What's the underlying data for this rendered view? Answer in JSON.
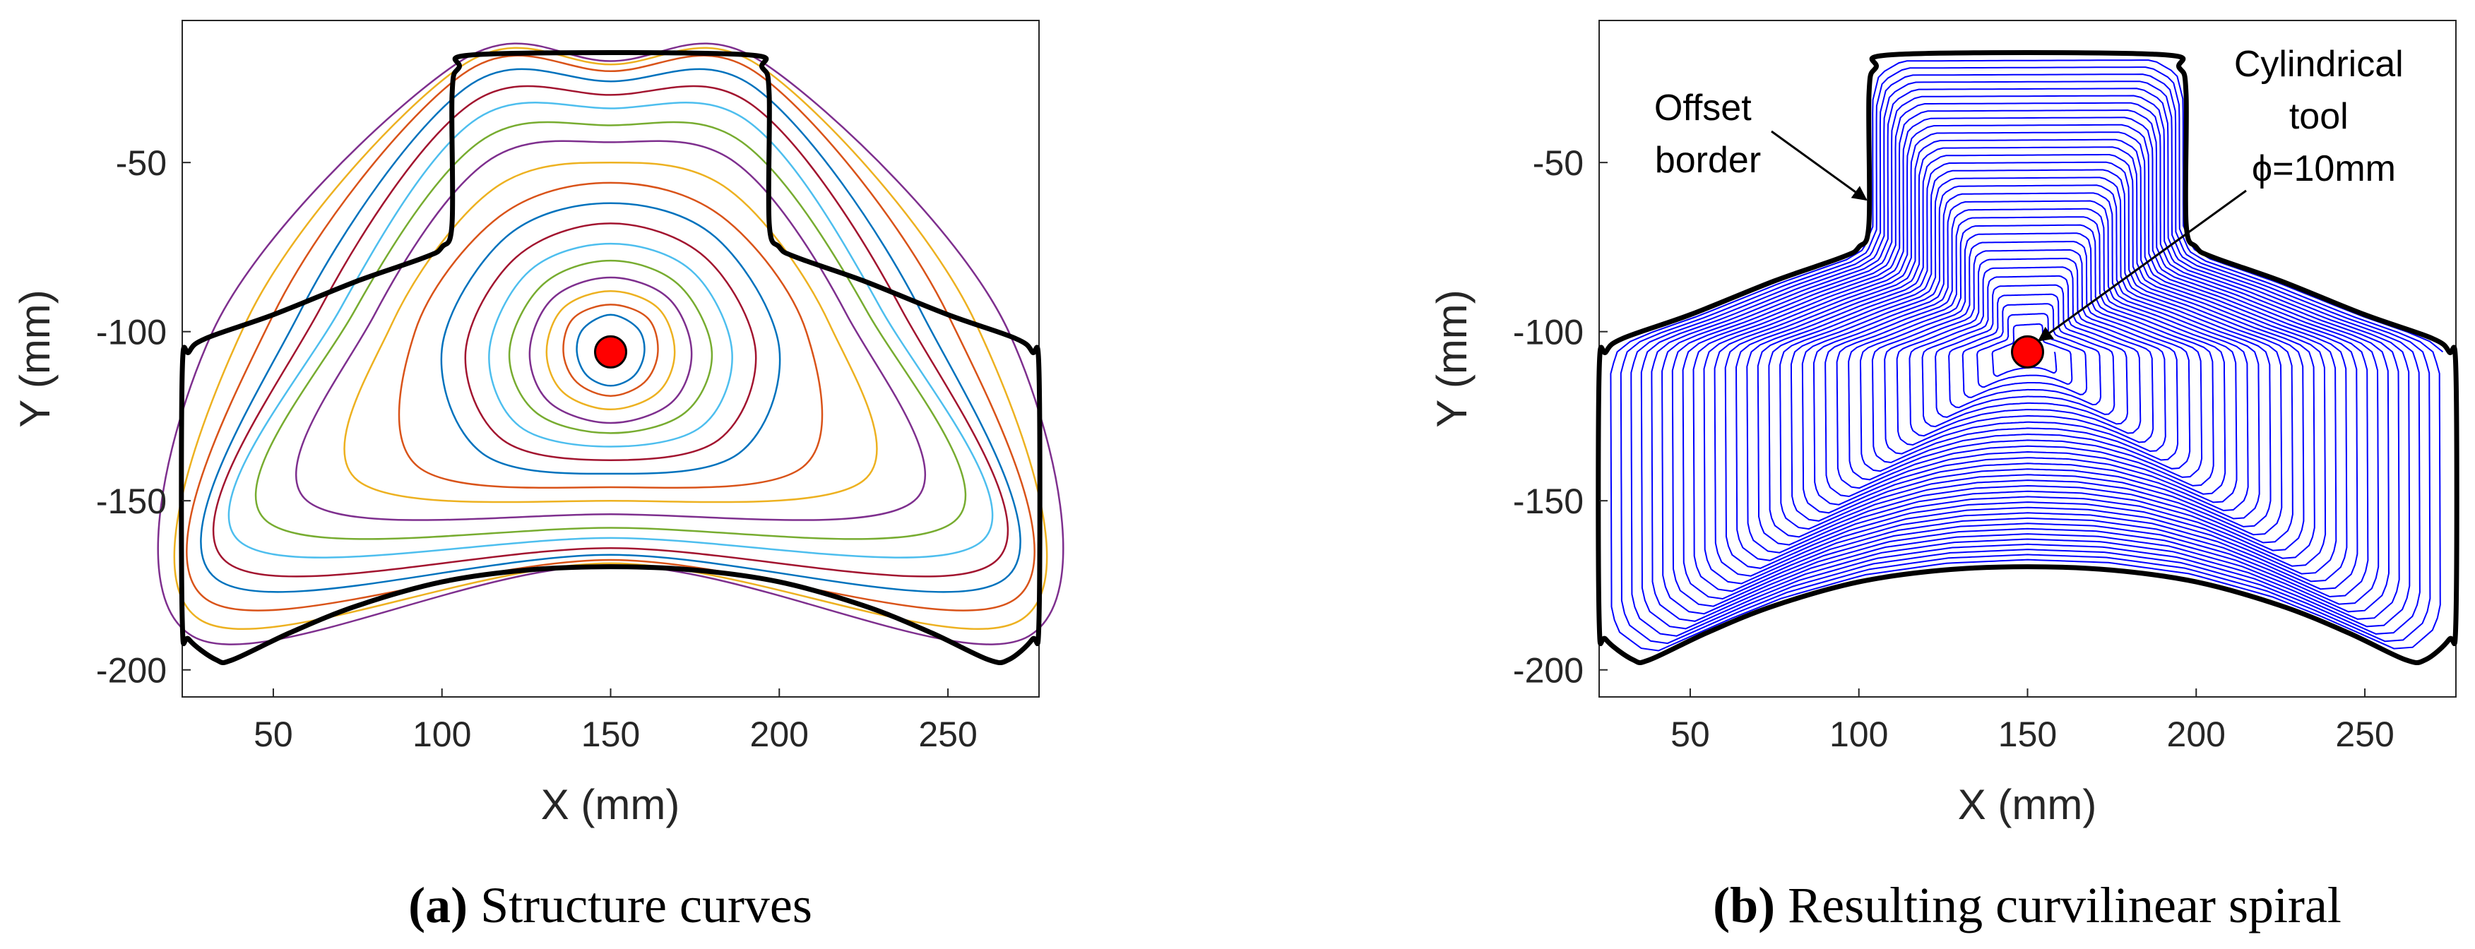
{
  "chart_data": [
    {
      "type": "line",
      "panel_label": "(a)",
      "caption": "Structure curves",
      "xlabel": "X (mm)",
      "ylabel": "Y (mm)",
      "xlim": [
        23,
        277
      ],
      "ylim": [
        -208,
        -8
      ],
      "xticks": [
        50,
        100,
        150,
        200,
        250
      ],
      "yticks": [
        -50,
        -100,
        -150,
        -200
      ],
      "grid": false,
      "center_point": {
        "x": 150,
        "y": -106
      },
      "series": [
        {
          "role": "border",
          "color": "#000000",
          "points": [
            [
              33,
              -197
            ],
            [
              38,
              -197
            ],
            [
              55,
              -189
            ],
            [
              75,
              -181
            ],
            [
              100,
              -174
            ],
            [
              125,
              -170.5
            ],
            [
              150,
              -169.5
            ],
            [
              175,
              -170.5
            ],
            [
              200,
              -174
            ],
            [
              225,
              -181
            ],
            [
              245,
              -189
            ],
            [
              262,
              -197
            ],
            [
              268,
              -197
            ],
            [
              275,
              -191
            ],
            [
              277,
              -185
            ],
            [
              277,
              -112
            ],
            [
              275,
              -106
            ],
            [
              270,
              -102
            ],
            [
              250,
              -95
            ],
            [
              225,
              -85
            ],
            [
              205,
              -78
            ],
            [
              200,
              -75
            ],
            [
              197,
              -68
            ],
            [
              197,
              -30
            ],
            [
              195,
              -22
            ],
            [
              188,
              -18
            ],
            [
              112,
              -18
            ],
            [
              105,
              -22
            ],
            [
              103,
              -30
            ],
            [
              103,
              -68
            ],
            [
              100,
              -75
            ],
            [
              95,
              -78
            ],
            [
              75,
              -85
            ],
            [
              50,
              -95
            ],
            [
              30,
              -102
            ],
            [
              25,
              -106
            ],
            [
              23,
              -112
            ],
            [
              23,
              -185
            ],
            [
              25,
              -191
            ],
            [
              33,
              -197
            ]
          ]
        },
        {
          "role": "curve",
          "color": "#0072BD",
          "points": [
            [
              150,
              -95
            ],
            [
              158,
              -99
            ],
            [
              160,
              -106
            ],
            [
              157,
              -113
            ],
            [
              150,
              -116
            ],
            [
              143,
              -113
            ],
            [
              140,
              -106
            ],
            [
              142,
              -99
            ],
            [
              150,
              -95
            ]
          ]
        },
        {
          "role": "curve",
          "color": "#D95319",
          "points": [
            [
              150,
              -92
            ],
            [
              161,
              -96
            ],
            [
              164,
              -106
            ],
            [
              160,
              -115
            ],
            [
              150,
              -119
            ],
            [
              140,
              -115
            ],
            [
              136,
              -106
            ],
            [
              139,
              -96
            ],
            [
              150,
              -92
            ]
          ]
        },
        {
          "role": "curve",
          "color": "#EDB120",
          "points": [
            [
              150,
              -88
            ],
            [
              164,
              -93
            ],
            [
              169,
              -106
            ],
            [
              164,
              -118
            ],
            [
              150,
              -123
            ],
            [
              136,
              -118
            ],
            [
              131,
              -106
            ],
            [
              136,
              -93
            ],
            [
              150,
              -88
            ]
          ]
        },
        {
          "role": "curve",
          "color": "#7E2F8E",
          "points": [
            [
              150,
              -84
            ],
            [
              167,
              -90
            ],
            [
              174,
              -106
            ],
            [
              168,
              -121
            ],
            [
              150,
              -127
            ],
            [
              132,
              -121
            ],
            [
              126,
              -106
            ],
            [
              133,
              -90
            ],
            [
              150,
              -84
            ]
          ]
        },
        {
          "role": "curve",
          "color": "#77AC30",
          "points": [
            [
              150,
              -79
            ],
            [
              170,
              -86
            ],
            [
              180,
              -106
            ],
            [
              172,
              -124
            ],
            [
              150,
              -130
            ],
            [
              128,
              -124
            ],
            [
              120,
              -106
            ],
            [
              130,
              -86
            ],
            [
              150,
              -79
            ]
          ]
        },
        {
          "role": "curve",
          "color": "#4DBEEE",
          "points": [
            [
              150,
              -74
            ],
            [
              174,
              -82
            ],
            [
              186,
              -106
            ],
            [
              177,
              -128
            ],
            [
              150,
              -134
            ],
            [
              123,
              -128
            ],
            [
              114,
              -106
            ],
            [
              126,
              -82
            ],
            [
              150,
              -74
            ]
          ]
        },
        {
          "role": "curve",
          "color": "#A2142F",
          "points": [
            [
              150,
              -68
            ],
            [
              178,
              -78
            ],
            [
              193,
              -106
            ],
            [
              182,
              -132
            ],
            [
              150,
              -138
            ],
            [
              118,
              -132
            ],
            [
              107,
              -106
            ],
            [
              122,
              -78
            ],
            [
              150,
              -68
            ]
          ]
        },
        {
          "role": "curve",
          "color": "#0072BD",
          "points": [
            [
              150,
              -62
            ],
            [
              181,
              -72
            ],
            [
              200,
              -105
            ],
            [
              188,
              -136
            ],
            [
              150,
              -142
            ],
            [
              112,
              -136
            ],
            [
              100,
              -105
            ],
            [
              119,
              -72
            ],
            [
              150,
              -62
            ]
          ]
        },
        {
          "role": "curve",
          "color": "#D95319",
          "points": [
            [
              150,
              -56
            ],
            [
              183,
              -66
            ],
            [
              208,
              -100
            ],
            [
              207,
              -140
            ],
            [
              150,
              -146
            ],
            [
              93,
              -140
            ],
            [
              92,
              -100
            ],
            [
              117,
              -66
            ],
            [
              150,
              -56
            ]
          ]
        },
        {
          "role": "curve",
          "color": "#EDB120",
          "points": [
            [
              150,
              -50
            ],
            [
              185,
              -58
            ],
            [
              215,
              -98
            ],
            [
              225,
              -144
            ],
            [
              150,
              -150
            ],
            [
              75,
              -144
            ],
            [
              85,
              -98
            ],
            [
              115,
              -58
            ],
            [
              150,
              -50
            ]
          ]
        },
        {
          "role": "curve",
          "color": "#7E2F8E",
          "points": [
            [
              150,
              -44
            ],
            [
              187,
              -50
            ],
            [
              220,
              -95
            ],
            [
              240,
              -150
            ],
            [
              150,
              -154
            ],
            [
              60,
              -150
            ],
            [
              80,
              -95
            ],
            [
              113,
              -50
            ],
            [
              150,
              -44
            ]
          ]
        },
        {
          "role": "curve",
          "color": "#77AC30",
          "points": [
            [
              150,
              -39
            ],
            [
              189,
              -44
            ],
            [
              226,
              -94
            ],
            [
              252,
              -156
            ],
            [
              150,
              -158
            ],
            [
              48,
              -156
            ],
            [
              74,
              -94
            ],
            [
              111,
              -44
            ],
            [
              150,
              -39
            ]
          ]
        },
        {
          "role": "curve",
          "color": "#4DBEEE",
          "points": [
            [
              150,
              -34
            ],
            [
              191,
              -38
            ],
            [
              230,
              -93
            ],
            [
              260,
              -162
            ],
            [
              150,
              -161
            ],
            [
              40,
              -162
            ],
            [
              70,
              -93
            ],
            [
              109,
              -38
            ],
            [
              150,
              -34
            ]
          ]
        },
        {
          "role": "curve",
          "color": "#A2142F",
          "points": [
            [
              150,
              -30
            ],
            [
              192,
              -33
            ],
            [
              236,
              -93
            ],
            [
              264,
              -168
            ],
            [
              150,
              -164
            ],
            [
              36,
              -168
            ],
            [
              64,
              -93
            ],
            [
              108,
              -33
            ],
            [
              150,
              -30
            ]
          ]
        },
        {
          "role": "curve",
          "color": "#0072BD",
          "points": [
            [
              150,
              -26
            ],
            [
              193,
              -28
            ],
            [
              242,
              -94
            ],
            [
              267,
              -173
            ],
            [
              150,
              -166
            ],
            [
              33,
              -173
            ],
            [
              58,
              -94
            ],
            [
              107,
              -28
            ],
            [
              150,
              -26
            ]
          ]
        },
        {
          "role": "curve",
          "color": "#D95319",
          "points": [
            [
              150,
              -23
            ],
            [
              194,
              -24
            ],
            [
              250,
              -95
            ],
            [
              270,
              -179
            ],
            [
              150,
              -167.5
            ],
            [
              30,
              -179
            ],
            [
              50,
              -95
            ],
            [
              106,
              -24
            ],
            [
              150,
              -23
            ]
          ]
        },
        {
          "role": "curve",
          "color": "#EDB120",
          "points": [
            [
              150,
              -21
            ],
            [
              195,
              -22
            ],
            [
              258,
              -97
            ],
            [
              272,
              -185
            ],
            [
              150,
              -168.5
            ],
            [
              28,
              -185
            ],
            [
              42,
              -97
            ],
            [
              105,
              -22
            ],
            [
              150,
              -21
            ]
          ]
        },
        {
          "role": "curve",
          "color": "#7E2F8E",
          "points": [
            [
              150,
              -20
            ],
            [
              196,
              -21
            ],
            [
              268,
              -100
            ],
            [
              274,
              -190
            ],
            [
              150,
              -169
            ],
            [
              26,
              -190
            ],
            [
              32,
              -100
            ],
            [
              104,
              -21
            ],
            [
              150,
              -20
            ]
          ]
        }
      ]
    },
    {
      "type": "line",
      "panel_label": "(b)",
      "caption": "Resulting curvilinear spiral",
      "xlabel": "X (mm)",
      "ylabel": "Y (mm)",
      "xlim": [
        23,
        277
      ],
      "ylim": [
        -208,
        -8
      ],
      "xticks": [
        50,
        100,
        150,
        200,
        250
      ],
      "yticks": [
        -50,
        -100,
        -150,
        -200
      ],
      "grid": false,
      "center_point": {
        "x": 150,
        "y": -106
      },
      "annotations": [
        {
          "lines": [
            "Offset",
            "border"
          ],
          "target": {
            "x": 103,
            "y": -61
          }
        },
        {
          "lines": [
            "Cylindrical",
            "tool",
            "ϕ=10mm"
          ],
          "target": {
            "x": 150,
            "y": -106
          }
        }
      ],
      "spiral": {
        "color": "#0000FF",
        "turns": 34,
        "start_fraction": 0.04
      },
      "series": [
        {
          "role": "border",
          "color": "#000000",
          "points": [
            [
              33,
              -197
            ],
            [
              38,
              -197
            ],
            [
              55,
              -189
            ],
            [
              75,
              -181
            ],
            [
              100,
              -174
            ],
            [
              125,
              -170.5
            ],
            [
              150,
              -169.5
            ],
            [
              175,
              -170.5
            ],
            [
              200,
              -174
            ],
            [
              225,
              -181
            ],
            [
              245,
              -189
            ],
            [
              262,
              -197
            ],
            [
              268,
              -197
            ],
            [
              275,
              -191
            ],
            [
              277,
              -185
            ],
            [
              277,
              -112
            ],
            [
              275,
              -106
            ],
            [
              270,
              -102
            ],
            [
              250,
              -95
            ],
            [
              225,
              -85
            ],
            [
              205,
              -78
            ],
            [
              200,
              -75
            ],
            [
              197,
              -68
            ],
            [
              197,
              -30
            ],
            [
              195,
              -22
            ],
            [
              188,
              -18
            ],
            [
              112,
              -18
            ],
            [
              105,
              -22
            ],
            [
              103,
              -30
            ],
            [
              103,
              -68
            ],
            [
              100,
              -75
            ],
            [
              95,
              -78
            ],
            [
              75,
              -85
            ],
            [
              50,
              -95
            ],
            [
              30,
              -102
            ],
            [
              25,
              -106
            ],
            [
              23,
              -112
            ],
            [
              23,
              -185
            ],
            [
              25,
              -191
            ],
            [
              33,
              -197
            ]
          ]
        }
      ]
    }
  ]
}
